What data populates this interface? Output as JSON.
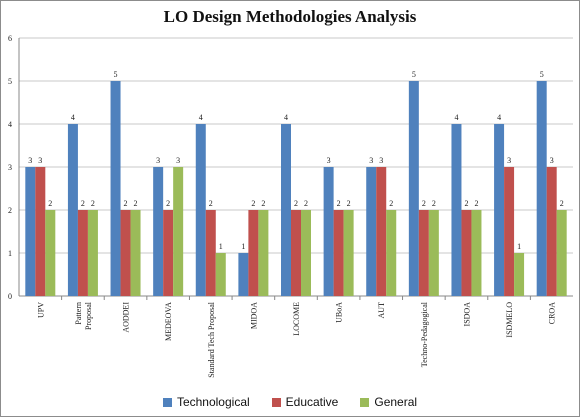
{
  "chart_data": {
    "type": "bar",
    "title": "LO Design Methodologies Analysis",
    "xlabel": "",
    "ylabel": "",
    "ylim": [
      0,
      6
    ],
    "yticks": [
      0,
      1,
      2,
      3,
      4,
      5,
      6
    ],
    "grid": true,
    "legend_position": "bottom",
    "categories": [
      "UPV",
      "Pattern Proposal",
      "AODDEI",
      "MEDEOVA",
      "Standard Tech Proposal",
      "MIDOA",
      "LOCOME",
      "UBoA",
      "AUT",
      "Techno-Pedagogical",
      "ISDOA",
      "ISDMELO",
      "CROA"
    ],
    "series": [
      {
        "name": "Technological",
        "color": "#4f81bd",
        "values": [
          3,
          4,
          5,
          3,
          4,
          1,
          4,
          3,
          3,
          5,
          4,
          4,
          5
        ]
      },
      {
        "name": "Educative",
        "color": "#c0504d",
        "values": [
          3,
          2,
          2,
          2,
          2,
          2,
          2,
          2,
          3,
          2,
          2,
          3,
          3
        ]
      },
      {
        "name": "General",
        "color": "#9bbb59",
        "values": [
          2,
          2,
          2,
          3,
          1,
          2,
          2,
          2,
          2,
          2,
          2,
          1,
          2
        ]
      }
    ]
  }
}
